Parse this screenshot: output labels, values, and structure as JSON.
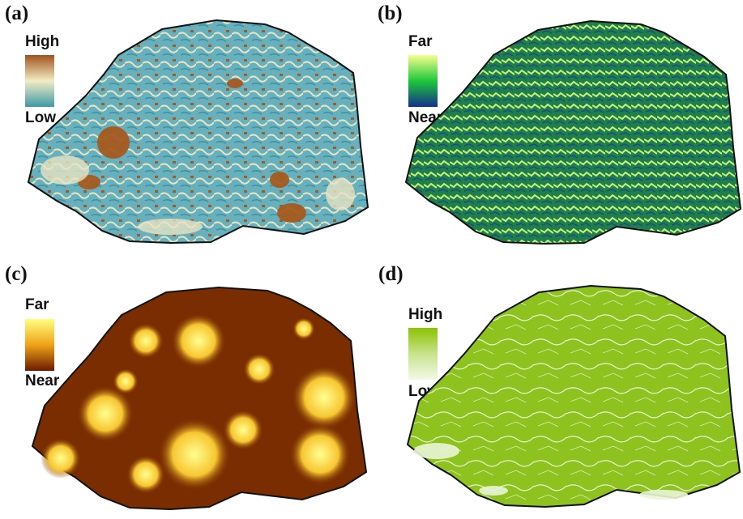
{
  "panels": [
    {
      "label": "(a)",
      "legend": {
        "high": "High",
        "low": "Low"
      },
      "colors": {
        "top": "#a0521c",
        "mid": "#f3ecc4",
        "bottom": "#3d98a8"
      },
      "map_colors": {
        "base": "#67b0bd",
        "accent": "#a65a1f",
        "light": "#e9e4c2"
      }
    },
    {
      "label": "(b)",
      "legend": {
        "high": "Far",
        "low": "Near"
      },
      "colors": {
        "top": "#f6ff8e",
        "mid": "#1dc83b",
        "bottom": "#142f8a"
      },
      "map_colors": {
        "base": "#1e7f4a",
        "accent": "#c9f27a",
        "light": "#1c4a8a"
      }
    },
    {
      "label": "(c)",
      "legend": {
        "high": "Far",
        "low": "Near"
      },
      "colors": {
        "top": "#ffff80",
        "mid": "#f0a317",
        "bottom": "#6b1a00"
      },
      "map_colors": {
        "base": "#7a2d00",
        "accent": "#ffe776",
        "light": "#f2b21d"
      }
    },
    {
      "label": "(d)",
      "legend": {
        "high": "High",
        "low": "Low"
      },
      "colors": {
        "top": "#8cc200",
        "mid": "#c7e28c",
        "bottom": "#f4f9e6"
      },
      "map_colors": {
        "base": "#8dc21f",
        "accent": "#ffffff",
        "light": "#e4f2c8"
      }
    }
  ]
}
